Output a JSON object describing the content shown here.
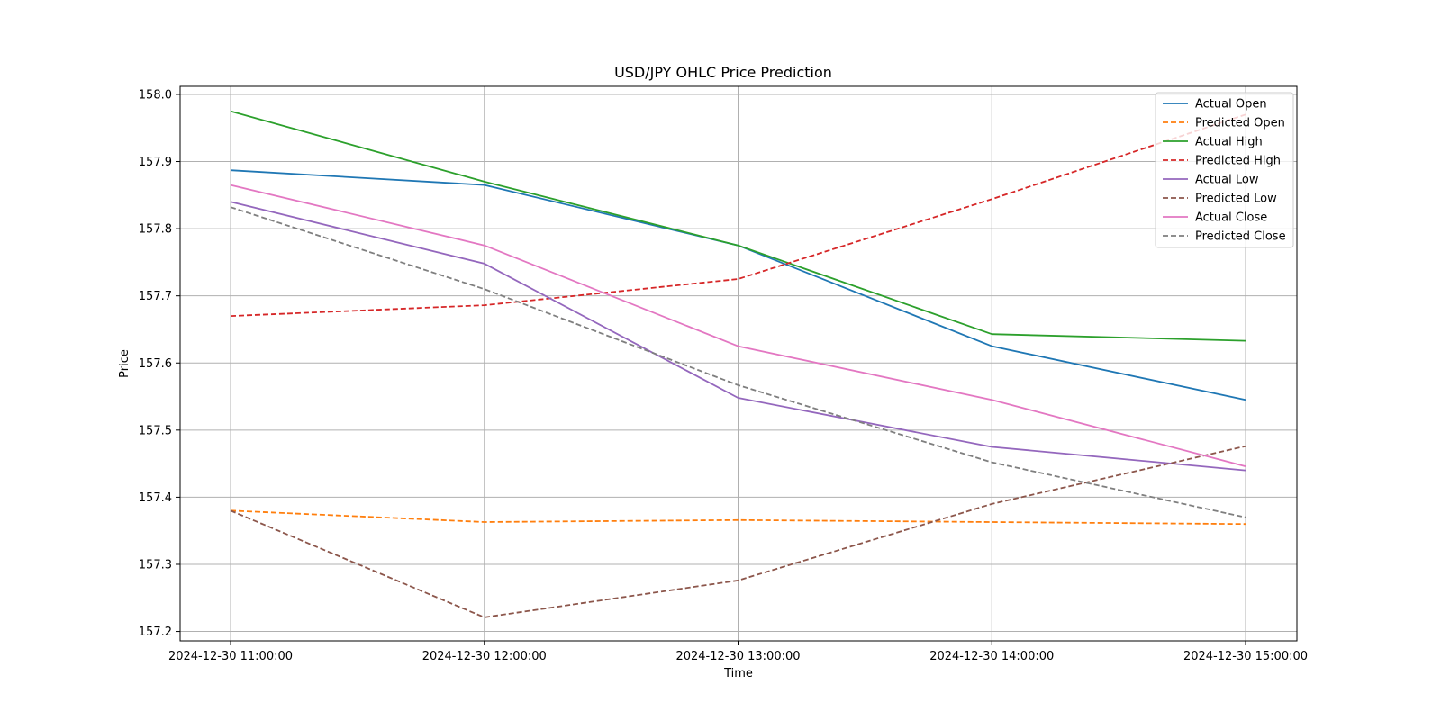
{
  "chart_data": {
    "type": "line",
    "title": "USD/JPY OHLC Price Prediction",
    "xlabel": "Time",
    "ylabel": "Price",
    "x": [
      "2024-12-30 11:00:00",
      "2024-12-30 12:00:00",
      "2024-12-30 13:00:00",
      "2024-12-30 14:00:00",
      "2024-12-30 15:00:00"
    ],
    "ylim": [
      157.186,
      158.012
    ],
    "yticks": [
      "157.2",
      "157.3",
      "157.4",
      "157.5",
      "157.6",
      "157.7",
      "157.8",
      "157.9",
      "158.0"
    ],
    "grid": true,
    "legend_position": "top-right",
    "series": [
      {
        "name": "Actual Open",
        "color": "#1f77b4",
        "dashed": false,
        "values": [
          157.887,
          157.865,
          157.775,
          157.625,
          157.545
        ]
      },
      {
        "name": "Predicted Open",
        "color": "#ff7f0e",
        "dashed": true,
        "values": [
          157.38,
          157.363,
          157.366,
          157.363,
          157.36
        ]
      },
      {
        "name": "Actual High",
        "color": "#2ca02c",
        "dashed": false,
        "values": [
          157.975,
          157.87,
          157.775,
          157.643,
          157.633
        ]
      },
      {
        "name": "Predicted High",
        "color": "#d62728",
        "dashed": true,
        "values": [
          157.67,
          157.686,
          157.725,
          157.844,
          157.97
        ]
      },
      {
        "name": "Actual Low",
        "color": "#9467bd",
        "dashed": false,
        "values": [
          157.84,
          157.748,
          157.548,
          157.475,
          157.44
        ]
      },
      {
        "name": "Predicted Low",
        "color": "#8c564b",
        "dashed": true,
        "values": [
          157.38,
          157.221,
          157.276,
          157.39,
          157.476
        ]
      },
      {
        "name": "Actual Close",
        "color": "#e377c2",
        "dashed": false,
        "values": [
          157.865,
          157.775,
          157.625,
          157.545,
          157.446
        ]
      },
      {
        "name": "Predicted Close",
        "color": "#7f7f7f",
        "dashed": true,
        "values": [
          157.832,
          157.71,
          157.567,
          157.452,
          157.37
        ]
      }
    ]
  }
}
